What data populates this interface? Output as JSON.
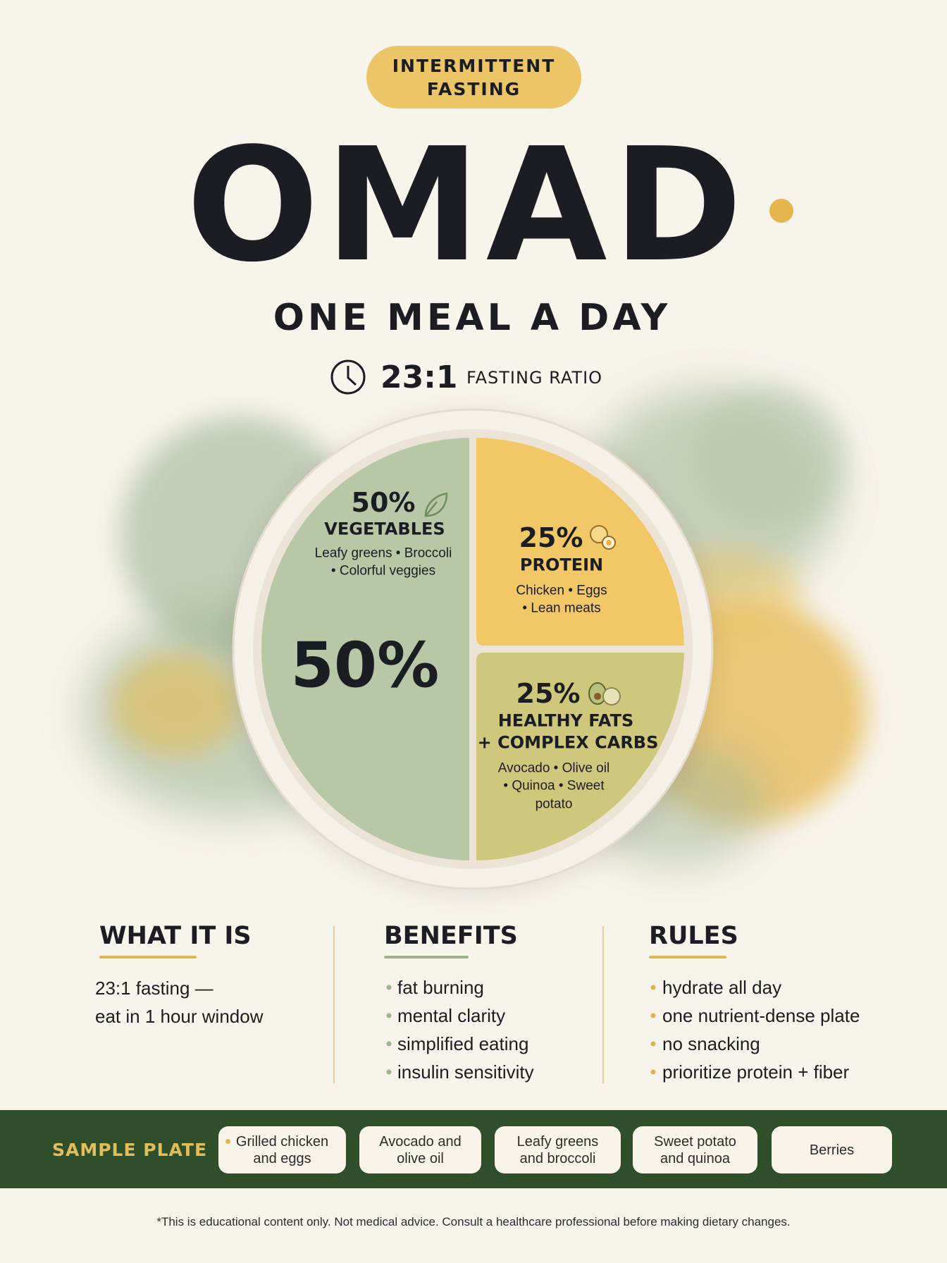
{
  "header": {
    "badge": "INTERMITTENT FASTING",
    "title": "OMAD",
    "subtitle": "ONE MEAL A DAY",
    "ratio": {
      "value": "23:1",
      "label": "FASTING RATIO"
    }
  },
  "plate": {
    "center_label": "50%",
    "sections": [
      {
        "percent": "50%",
        "name": [
          "VEGETABLES"
        ],
        "details": [
          "Leafy greens • Broccoli",
          "• Colorful veggies"
        ]
      },
      {
        "percent": "25%",
        "name": [
          "PROTEIN"
        ],
        "details": [
          "Chicken • Eggs",
          "• Lean meats"
        ]
      },
      {
        "percent": "25%",
        "name": [
          "HEALTHY FATS",
          "+ COMPLEX CARBS"
        ],
        "details": [
          "Avocado • Olive oil",
          "• Quinoa • Sweet",
          "potato"
        ]
      }
    ]
  },
  "columns": [
    {
      "title": "WHAT IT IS",
      "lines": [
        "23:1 fasting —",
        "eat in 1 hour window"
      ]
    },
    {
      "title": "BENEFITS",
      "lines": [
        "fat burning",
        "mental clarity",
        "simplified eating",
        "insulin sensitivity"
      ]
    },
    {
      "title": "RULES",
      "lines": [
        "hydrate all day",
        "one nutrient-dense plate",
        "no snacking",
        "prioritize protein + fiber"
      ]
    }
  ],
  "sample_plate": {
    "label": "SAMPLE PLATE",
    "items": [
      "Grilled chicken and eggs",
      "Avocado and olive oil",
      "Leafy greens and broccoli",
      "Sweet potato and quinoa",
      "Berries"
    ]
  },
  "disclaimer": "*This is educational content only. Not medical advice. Consult a healthcare professional before making dietary changes."
}
